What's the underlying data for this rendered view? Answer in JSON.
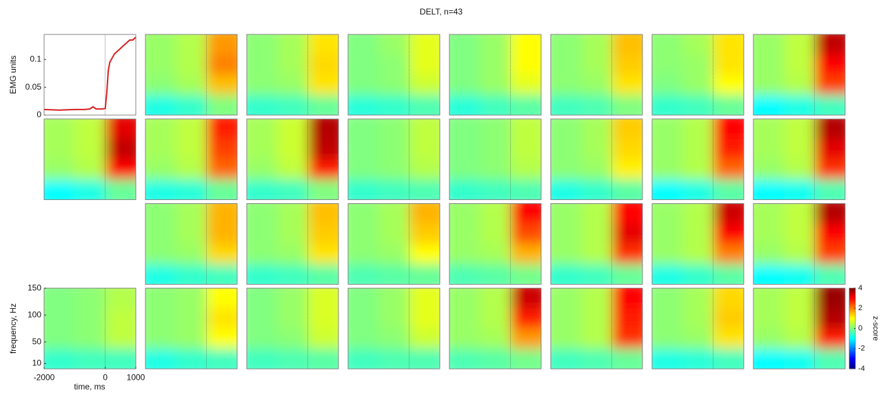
{
  "chart_data": [
    {
      "type": "line",
      "ylabel": "EMG units",
      "color": "#d62020",
      "x": [
        -2000,
        -1500,
        -1000,
        -700,
        -500,
        -400,
        -300,
        -100,
        0,
        50,
        100,
        150,
        200,
        300,
        400,
        500,
        600,
        700,
        800,
        900,
        1000
      ],
      "values": [
        0.01,
        0.009,
        0.01,
        0.01,
        0.011,
        0.015,
        0.011,
        0.011,
        0.012,
        0.04,
        0.08,
        0.095,
        0.1,
        0.11,
        0.115,
        0.12,
        0.125,
        0.13,
        0.135,
        0.135,
        0.14
      ],
      "xlim": [
        -2000,
        1000
      ],
      "ylim": [
        0,
        0.145
      ],
      "yticks": [
        0,
        0.05,
        0.1
      ]
    },
    {
      "type": "heatmap",
      "title": "DELT, n=43",
      "xlabel": "time, ms",
      "ylabel": "frequency, Hz",
      "xlim": [
        -2000,
        1000
      ],
      "xticks": [
        -2000,
        0,
        1000
      ],
      "ylim": [
        0,
        150
      ],
      "yticks": [
        10,
        50,
        100,
        150
      ],
      "colorbar": {
        "label": "z-score",
        "lim": [
          -4,
          4
        ],
        "ticks": [
          4,
          2,
          0,
          -2,
          -4
        ]
      },
      "rows": [
        [
          null,
          [
            [
              0.2,
              0.4,
              1.8
            ],
            [
              0.2,
              0.4,
              2
            ],
            [
              0.1,
              0.3,
              1.5
            ],
            [
              -0.8,
              -0.6,
              0
            ]
          ],
          [
            [
              0.1,
              0.3,
              1.2
            ],
            [
              0.1,
              0.3,
              1.3
            ],
            [
              0.1,
              0.2,
              1.2
            ],
            [
              -0.6,
              -0.5,
              -0.2
            ]
          ],
          [
            [
              0,
              0.2,
              0.8
            ],
            [
              0,
              0.1,
              0.8
            ],
            [
              0,
              0.1,
              0.6
            ],
            [
              -0.7,
              -0.6,
              -0.4
            ]
          ],
          [
            [
              0,
              0.2,
              1.0
            ],
            [
              0,
              0.2,
              1.0
            ],
            [
              0,
              0.2,
              0.8
            ],
            [
              -0.7,
              -0.5,
              -0.3
            ]
          ],
          [
            [
              0.1,
              0.3,
              1.5
            ],
            [
              0.1,
              0.3,
              1.4
            ],
            [
              0.1,
              0.2,
              1.2
            ],
            [
              -0.5,
              -0.4,
              0
            ]
          ],
          [
            [
              0.1,
              0.3,
              1.2
            ],
            [
              0.1,
              0.2,
              1.2
            ],
            [
              0,
              0.2,
              1.0
            ],
            [
              -0.6,
              -0.5,
              -0.2
            ]
          ],
          [
            [
              0.2,
              0.5,
              3.5
            ],
            [
              0.2,
              0.5,
              3.0
            ],
            [
              0.2,
              0.4,
              2.5
            ],
            [
              -1,
              -0.8,
              -0.5
            ]
          ]
        ],
        [
          [
            [
              0.3,
              0.5,
              3.2
            ],
            [
              0.3,
              0.5,
              3.5
            ],
            [
              0.2,
              0.4,
              3.0
            ],
            [
              -1,
              -0.8,
              -0.2
            ]
          ],
          [
            [
              0.3,
              0.5,
              2.8
            ],
            [
              0.3,
              0.5,
              2.5
            ],
            [
              0.2,
              0.4,
              2.2
            ],
            [
              -0.8,
              -0.7,
              -0.2
            ]
          ],
          [
            [
              0.3,
              0.6,
              3.6
            ],
            [
              0.3,
              0.6,
              3.5
            ],
            [
              0.2,
              0.5,
              2.8
            ],
            [
              -0.6,
              -0.5,
              0
            ]
          ],
          [
            [
              0,
              0.1,
              0.5
            ],
            [
              0,
              0.1,
              0.5
            ],
            [
              0,
              0.1,
              0.4
            ],
            [
              -0.6,
              -0.5,
              -0.4
            ]
          ],
          [
            [
              0,
              0.1,
              0.5
            ],
            [
              0,
              0.1,
              0.5
            ],
            [
              0,
              0.1,
              0.4
            ],
            [
              -0.6,
              -0.5,
              -0.4
            ]
          ],
          [
            [
              0.1,
              0.3,
              1.4
            ],
            [
              0.1,
              0.3,
              1.3
            ],
            [
              0.1,
              0.2,
              1.1
            ],
            [
              -0.8,
              -0.6,
              -0.3
            ]
          ],
          [
            [
              0.2,
              0.4,
              3.0
            ],
            [
              0.2,
              0.4,
              2.8
            ],
            [
              0.2,
              0.4,
              2.2
            ],
            [
              -1,
              -0.8,
              -0.3
            ]
          ],
          [
            [
              0.3,
              0.5,
              3.6
            ],
            [
              0.3,
              0.5,
              3.2
            ],
            [
              0.2,
              0.4,
              2.6
            ],
            [
              -1,
              -0.9,
              -0.4
            ]
          ]
        ],
        [
          null,
          [
            [
              0.1,
              0.3,
              1.6
            ],
            [
              0.1,
              0.3,
              1.6
            ],
            [
              0.1,
              0.2,
              1.3
            ],
            [
              -0.8,
              -0.6,
              -0.5
            ]
          ],
          [
            [
              0.1,
              0.3,
              1.5
            ],
            [
              0.1,
              0.3,
              1.4
            ],
            [
              0.1,
              0.2,
              1.2
            ],
            [
              -0.6,
              -0.5,
              -0.3
            ]
          ],
          [
            [
              0.1,
              0.3,
              1.6
            ],
            [
              0.1,
              0.3,
              1.4
            ],
            [
              0.1,
              0.2,
              1.0
            ],
            [
              -0.4,
              -0.3,
              -0.2
            ]
          ],
          [
            [
              0.2,
              0.4,
              3.0
            ],
            [
              0.2,
              0.4,
              2.4
            ],
            [
              0.2,
              0.3,
              1.6
            ],
            [
              -0.4,
              -0.3,
              -0.1
            ]
          ],
          [
            [
              0.2,
              0.4,
              3.0
            ],
            [
              0.2,
              0.4,
              3.2
            ],
            [
              0.2,
              0.4,
              2.6
            ],
            [
              -0.6,
              -0.5,
              -0.2
            ]
          ],
          [
            [
              0.2,
              0.4,
              3.4
            ],
            [
              0.2,
              0.4,
              3.0
            ],
            [
              0.2,
              0.4,
              2.0
            ],
            [
              -0.8,
              -0.6,
              -0.3
            ]
          ],
          [
            [
              0.3,
              0.5,
              3.6
            ],
            [
              0.3,
              0.5,
              3.0
            ],
            [
              0.2,
              0.4,
              2.5
            ],
            [
              -1,
              -0.9,
              -0.4
            ]
          ]
        ],
        [
          [
            [
              0,
              0.1,
              0.4
            ],
            [
              0,
              0.1,
              0.5
            ],
            [
              0,
              0.1,
              0.5
            ],
            [
              -0.6,
              -0.5,
              -0.5
            ]
          ],
          [
            [
              0.1,
              0.2,
              1.0
            ],
            [
              0.1,
              0.2,
              1.2
            ],
            [
              0.1,
              0.2,
              1.0
            ],
            [
              -0.8,
              -0.6,
              -0.5
            ]
          ],
          [
            [
              0,
              0.2,
              0.7
            ],
            [
              0,
              0.2,
              0.7
            ],
            [
              0,
              0.1,
              0.6
            ],
            [
              -0.5,
              -0.4,
              -0.3
            ]
          ],
          [
            [
              0,
              0.2,
              0.8
            ],
            [
              0,
              0.2,
              0.8
            ],
            [
              0,
              0.1,
              0.6
            ],
            [
              -0.5,
              -0.4,
              -0.4
            ]
          ],
          [
            [
              0.2,
              0.4,
              3.4
            ],
            [
              0.2,
              0.4,
              2.8
            ],
            [
              0.2,
              0.3,
              1.8
            ],
            [
              -0.4,
              -0.3,
              -0.1
            ]
          ],
          [
            [
              0.2,
              0.4,
              3.0
            ],
            [
              0.2,
              0.4,
              2.8
            ],
            [
              0.2,
              0.4,
              2.6
            ],
            [
              -0.5,
              -0.4,
              -0.2
            ]
          ],
          [
            [
              0.1,
              0.3,
              1.3
            ],
            [
              0.1,
              0.3,
              1.4
            ],
            [
              0.1,
              0.2,
              1.2
            ],
            [
              -0.8,
              -0.7,
              -0.5
            ]
          ],
          [
            [
              0.3,
              0.5,
              3.8
            ],
            [
              0.3,
              0.5,
              3.6
            ],
            [
              0.2,
              0.4,
              2.8
            ],
            [
              -1,
              -0.9,
              -0.4
            ]
          ]
        ]
      ]
    }
  ]
}
